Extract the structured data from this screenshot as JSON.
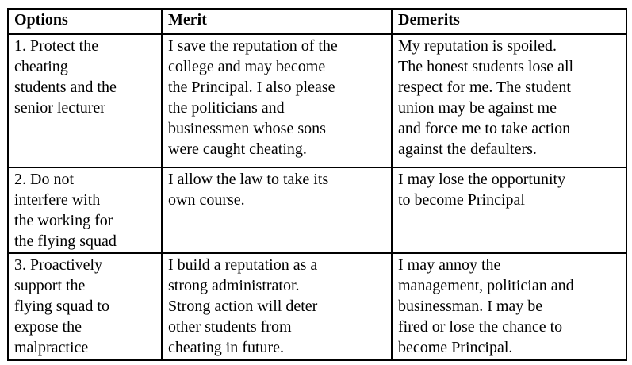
{
  "table": {
    "headers": [
      "Options",
      "Merit",
      "Demerits"
    ],
    "rows": [
      {
        "options": "1. Protect the\ncheating\nstudents and the\nsenior lecturer",
        "merit": "I save the reputation of the\ncollege and may become\nthe Principal. I also please\nthe politicians and\nbusinessmen whose sons\nwere caught cheating.",
        "demerits": "My reputation is spoiled.\nThe honest students lose all\nrespect for me. The student\nunion may be against me\nand force me to take action\nagainst the defaulters."
      },
      {
        "options": "2. Do not\ninterfere with\nthe working for\nthe flying squad",
        "merit": "I allow the law to take its\nown course.",
        "demerits": "I may lose the opportunity\nto become Principal"
      },
      {
        "options": "3. Proactively\nsupport the\nflying squad to\nexpose the\nmalpractice",
        "merit": "I build a reputation as a\nstrong administrator.\nStrong action will deter\nother students from\ncheating in future.",
        "demerits": "I may annoy the\nmanagement, politician and\nbusinessman. I may be\nfired or lose the chance to\nbecome Principal."
      }
    ]
  },
  "colors": {
    "border": "#000000",
    "text": "#000000",
    "background": "#ffffff"
  }
}
